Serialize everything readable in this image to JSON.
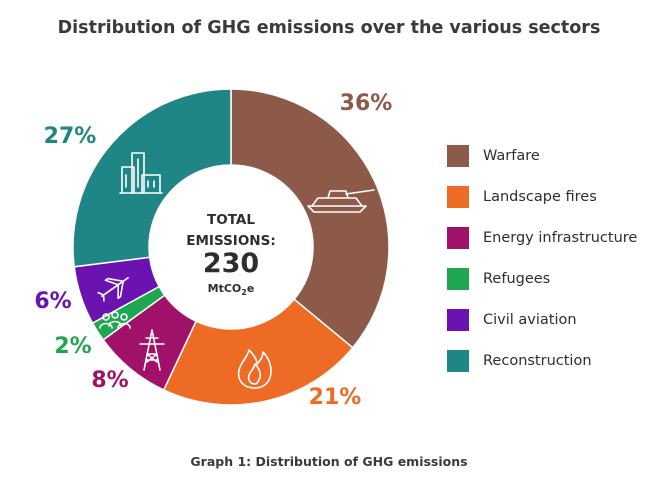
{
  "chart_data": {
    "type": "donut",
    "title": "Distribution of GHG emissions over the various sectors",
    "caption": "Graph 1: Distribution of GHG emissions",
    "center": {
      "line1": "TOTAL",
      "line2": "EMISSIONS:",
      "value": "230",
      "unit": "MtCO",
      "unit_sub": "2",
      "unit_suffix": "e"
    },
    "categories": [
      "Warfare",
      "Landscape fires",
      "Energy infrastructure",
      "Refugees",
      "Civil aviation",
      "Reconstruction"
    ],
    "values": [
      36,
      21,
      8,
      2,
      6,
      27
    ],
    "labels": [
      "36%",
      "21%",
      "8%",
      "2%",
      "6%",
      "27%"
    ],
    "colors": [
      "#8d5a49",
      "#ee6b26",
      "#a0126a",
      "#1fa651",
      "#6a13b0",
      "#1f8585"
    ],
    "icons": [
      "tank-icon",
      "fire-icon",
      "power-pylon-icon",
      "people-icon",
      "airplane-icon",
      "buildings-icon"
    ],
    "legend_position": "right"
  }
}
